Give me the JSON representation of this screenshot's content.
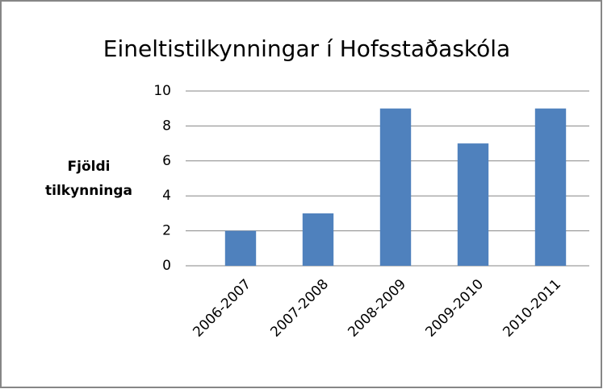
{
  "chart_data": {
    "type": "bar",
    "title": "Eineltistilkynningar í Hofsstaðaskóla",
    "ylabel": "Fjöldi tilkynninga",
    "categories": [
      "2006-2007",
      "2007-2008",
      "2008-2009",
      "2009-2010",
      "2010-2011"
    ],
    "values": [
      2,
      3,
      9,
      7,
      9
    ],
    "color": "#4f81bd",
    "ylim": [
      0,
      10
    ],
    "yticks": [
      0,
      2,
      4,
      6,
      8,
      10
    ],
    "grid": true
  }
}
